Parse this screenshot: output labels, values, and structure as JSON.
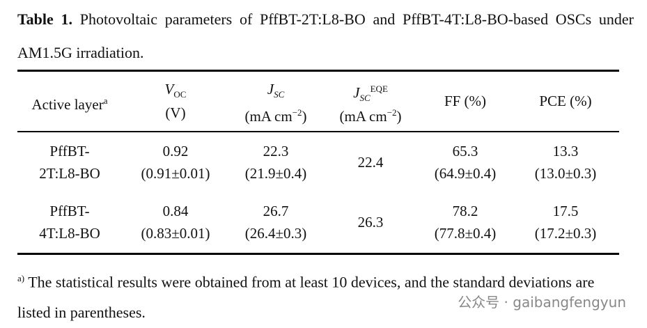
{
  "caption": {
    "label": "Table 1.",
    "text": "Photovoltaic parameters of PffBT-2T:L8-BO and PffBT-4T:L8-BO-based OSCs under AM1.5G irradiation."
  },
  "table": {
    "headers": [
      [
        [
          {
            "text": "Active layer"
          },
          {
            "text": "a",
            "style": "sup"
          }
        ]
      ],
      [
        [
          {
            "text": "V",
            "style": "i"
          },
          {
            "text": "OC",
            "style": "sub"
          }
        ],
        [
          {
            "text": "(V)"
          }
        ]
      ],
      [
        [
          {
            "text": "J",
            "style": "i"
          },
          {
            "text": "SC",
            "style": "sub-i"
          }
        ],
        [
          {
            "text": "(mA cm"
          },
          {
            "text": "−2",
            "style": "sup"
          },
          {
            "text": ")"
          }
        ]
      ],
      [
        [
          {
            "text": "J",
            "style": "i"
          },
          {
            "text": "SC",
            "style": "sub-i"
          },
          {
            "text": "EQE",
            "style": "sup"
          }
        ],
        [
          {
            "text": "(mA cm"
          },
          {
            "text": "−2",
            "style": "sup"
          },
          {
            "text": ")"
          }
        ]
      ],
      [
        [
          {
            "text": "FF (%)"
          }
        ]
      ],
      [
        [
          {
            "text": "PCE (%)"
          }
        ]
      ]
    ],
    "rows": [
      [
        [
          "PffBT-",
          "2T:L8-BO"
        ],
        [
          "0.92",
          "(0.91±0.01)"
        ],
        [
          "22.3",
          "(21.9±0.4)"
        ],
        [
          "22.4"
        ],
        [
          "65.3",
          "(64.9±0.4)"
        ],
        [
          "13.3",
          "(13.0±0.3)"
        ]
      ],
      [
        [
          "PffBT-",
          "4T:L8-BO"
        ],
        [
          "0.84",
          "(0.83±0.01)"
        ],
        [
          "26.7",
          "(26.4±0.3)"
        ],
        [
          "26.3"
        ],
        [
          "78.2",
          "(77.8±0.4)"
        ],
        [
          "17.5",
          "(17.2±0.3)"
        ]
      ]
    ]
  },
  "footnote": {
    "mark": "a)",
    "text": "The statistical results were obtained from at least 10 devices, and the standard deviations are listed in parentheses."
  },
  "watermark": "公众号 · gaibangfengyun"
}
